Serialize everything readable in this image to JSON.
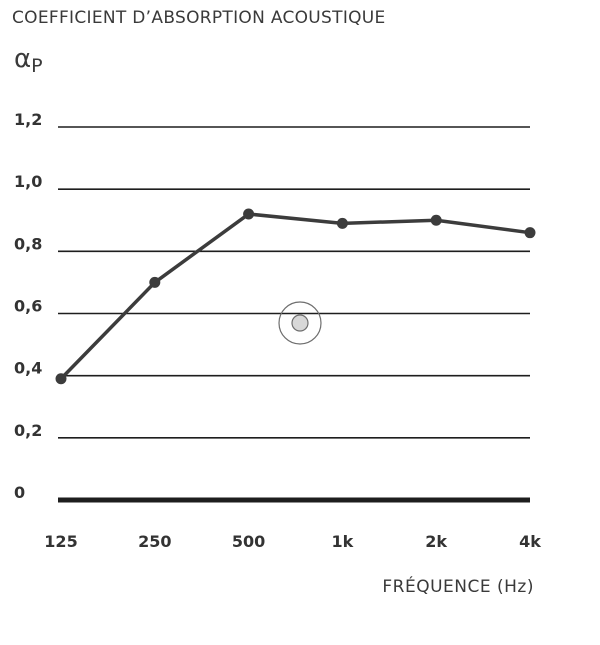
{
  "title": "COEFFICIENT D’ABSORPTION ACOUSTIQUE",
  "chart_data": {
    "type": "line",
    "ylabel_main": "α",
    "ylabel_sub": "P",
    "xlabel": "FRÉQUENCE (Hz)",
    "categories": [
      "125",
      "250",
      "500",
      "1k",
      "2k",
      "4k"
    ],
    "values": [
      0.39,
      0.7,
      0.92,
      0.89,
      0.9,
      0.86
    ],
    "yticks": [
      0,
      0.2,
      0.4,
      0.6,
      0.8,
      1.0,
      1.2
    ],
    "ytick_labels": [
      "0",
      "0,2",
      "0,4",
      "0,6",
      "0,8",
      "1,0",
      "1,2"
    ],
    "ylim": [
      0,
      1.2
    ],
    "grid": true,
    "line_color": "#3c3c3c",
    "marker_color": "#3c3c3c"
  }
}
